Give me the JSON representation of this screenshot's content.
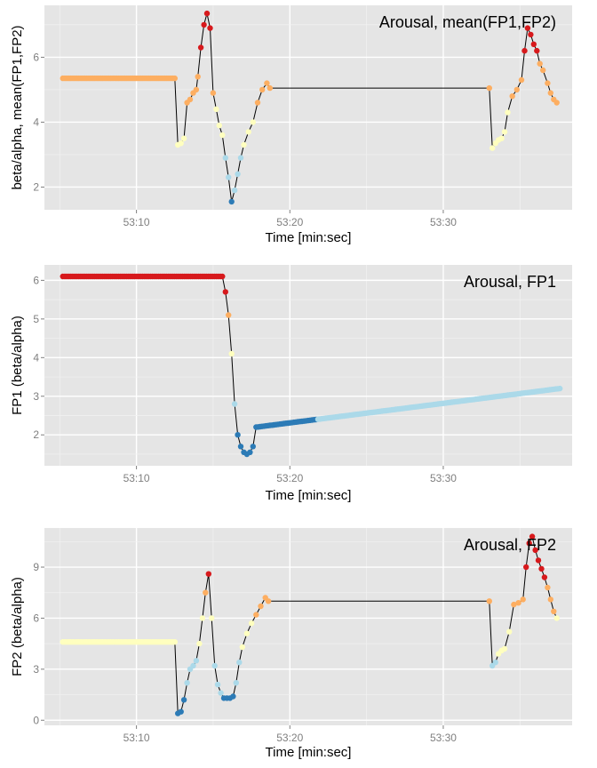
{
  "colors": {
    "panel_bg": "#e5e5e5",
    "grid_major": "#ffffff",
    "grid_minor": "#f2f2f2",
    "tick_text": "#7f7f7f",
    "line": "#000000",
    "level_colors": [
      "#2c7bb6",
      "#abd9e9",
      "#ffffbf",
      "#fdae61",
      "#d7191c"
    ]
  },
  "chart_data": [
    {
      "type": "scatter",
      "title": "Arousal, mean(FP1,FP2)",
      "xlabel": "Time [min:sec]",
      "ylabel": "beta/alpha, mean(FP1,FP2)",
      "xlim": [
        "53:04.0",
        "53:38.4"
      ],
      "ylim": [
        1.3,
        7.6
      ],
      "x_ticks": [
        "53:10",
        "53:20",
        "53:30"
      ],
      "y_ticks": [
        2,
        4,
        6
      ],
      "grid": true,
      "levels": [
        1.9,
        3.2,
        4.6,
        5.9
      ],
      "series": [
        {
          "x": [
            "53:05.2",
            "53:12.5",
            "53:12.7",
            "53:12.9",
            "53:13.1",
            "53:13.3",
            "53:13.5",
            "53:13.7",
            "53:13.9",
            "53:14.0",
            "53:14.2",
            "53:14.4",
            "53:14.6",
            "53:14.8",
            "53:15.0",
            "53:15.2",
            "53:15.4",
            "53:15.6",
            "53:15.8",
            "53:16.0",
            "53:16.2",
            "53:16.4",
            "53:16.6",
            "53:16.8",
            "53:17.0",
            "53:17.3",
            "53:17.6",
            "53:17.9",
            "53:18.2",
            "53:18.5",
            "53:18.7",
            "53:33.0",
            "53:33.2",
            "53:33.4",
            "53:33.6",
            "53:33.8",
            "53:34.0",
            "53:34.2",
            "53:34.5",
            "53:34.8",
            "53:35.1",
            "53:35.3",
            "53:35.5",
            "53:35.7",
            "53:35.9",
            "53:36.1",
            "53:36.3",
            "53:36.5",
            "53:36.8",
            "53:37.0",
            "53:37.2",
            "53:37.4"
          ],
          "y": [
            5.35,
            5.35,
            3.3,
            3.35,
            3.5,
            4.6,
            4.7,
            4.9,
            5.0,
            5.4,
            6.3,
            7.0,
            7.35,
            6.9,
            4.9,
            4.4,
            3.9,
            3.6,
            2.9,
            2.3,
            1.55,
            1.9,
            2.4,
            2.9,
            3.3,
            3.7,
            4.0,
            4.6,
            5.0,
            5.2,
            5.05,
            5.05,
            3.2,
            3.35,
            3.45,
            3.5,
            3.7,
            4.3,
            4.8,
            5.0,
            5.3,
            6.2,
            6.9,
            6.7,
            6.4,
            6.2,
            5.8,
            5.6,
            5.2,
            4.9,
            4.7,
            4.6
          ],
          "fill_from": [
            "53:05.2",
            "53:12.6",
            "53:18.9",
            "53:33.0"
          ]
        }
      ]
    },
    {
      "type": "scatter",
      "title": "Arousal, FP1",
      "xlabel": "Time [min:sec]",
      "ylabel": "FP1 (beta/alpha)",
      "xlim": [
        "53:04.0",
        "53:38.4"
      ],
      "ylim": [
        1.2,
        6.4
      ],
      "x_ticks": [
        "53:10",
        "53:20",
        "53:30"
      ],
      "y_ticks": [
        2,
        3,
        4,
        5,
        6
      ],
      "grid": true,
      "levels": [
        2.4,
        3.7,
        4.8,
        5.6
      ],
      "series": [
        {
          "x": [
            "53:05.2",
            "53:15.6",
            "53:15.8",
            "53:16.0",
            "53:16.2",
            "53:16.4",
            "53:16.6",
            "53:16.8",
            "53:17.0",
            "53:17.2",
            "53:17.4",
            "53:17.6",
            "53:17.8",
            "53:37.6"
          ],
          "y": [
            6.1,
            6.1,
            5.7,
            5.1,
            4.1,
            2.8,
            2.0,
            1.7,
            1.55,
            1.5,
            1.55,
            1.7,
            2.2,
            3.2
          ],
          "fill_from": [
            "53:05.2",
            "53:17.8"
          ]
        }
      ]
    },
    {
      "type": "scatter",
      "title": "Arousal, FP2",
      "xlabel": "Time [min:sec]",
      "ylabel": "FP2 (beta/alpha)",
      "xlim": [
        "53:04.0",
        "53:38.4"
      ],
      "ylim": [
        -0.3,
        11.3
      ],
      "x_ticks": [
        "53:10",
        "53:20",
        "53:30"
      ],
      "y_ticks": [
        0,
        3,
        6,
        9
      ],
      "grid": true,
      "levels": [
        1.5,
        3.6,
        6.2,
        8.0
      ],
      "series": [
        {
          "x": [
            "53:05.2",
            "53:12.5",
            "53:12.7",
            "53:12.9",
            "53:13.1",
            "53:13.3",
            "53:13.5",
            "53:13.7",
            "53:13.9",
            "53:14.1",
            "53:14.3",
            "53:14.5",
            "53:14.7",
            "53:14.9",
            "53:15.1",
            "53:15.3",
            "53:15.5",
            "53:15.7",
            "53:15.9",
            "53:16.1",
            "53:16.3",
            "53:16.5",
            "53:16.7",
            "53:16.9",
            "53:17.2",
            "53:17.5",
            "53:17.8",
            "53:18.1",
            "53:18.4",
            "53:18.6",
            "53:33.0",
            "53:33.2",
            "53:33.4",
            "53:33.6",
            "53:33.8",
            "53:34.0",
            "53:34.3",
            "53:34.6",
            "53:34.9",
            "53:35.2",
            "53:35.4",
            "53:35.6",
            "53:35.8",
            "53:36.0",
            "53:36.2",
            "53:36.4",
            "53:36.6",
            "53:36.8",
            "53:37.0",
            "53:37.2",
            "53:37.4"
          ],
          "y": [
            4.6,
            4.6,
            0.4,
            0.5,
            1.2,
            2.2,
            3.0,
            3.2,
            3.5,
            4.5,
            6.0,
            7.5,
            8.6,
            6.0,
            3.2,
            2.1,
            1.6,
            1.3,
            1.3,
            1.3,
            1.4,
            2.2,
            3.4,
            4.3,
            5.1,
            5.7,
            6.2,
            6.7,
            7.2,
            7.0,
            7.0,
            3.2,
            3.4,
            3.9,
            4.1,
            4.2,
            5.2,
            6.8,
            6.9,
            7.1,
            9.0,
            10.4,
            10.8,
            10.0,
            9.4,
            8.9,
            8.4,
            7.8,
            7.1,
            6.4,
            6.0
          ],
          "fill_from": [
            "53:05.2",
            "53:12.6",
            "53:18.7",
            "53:33.0"
          ]
        }
      ]
    }
  ]
}
